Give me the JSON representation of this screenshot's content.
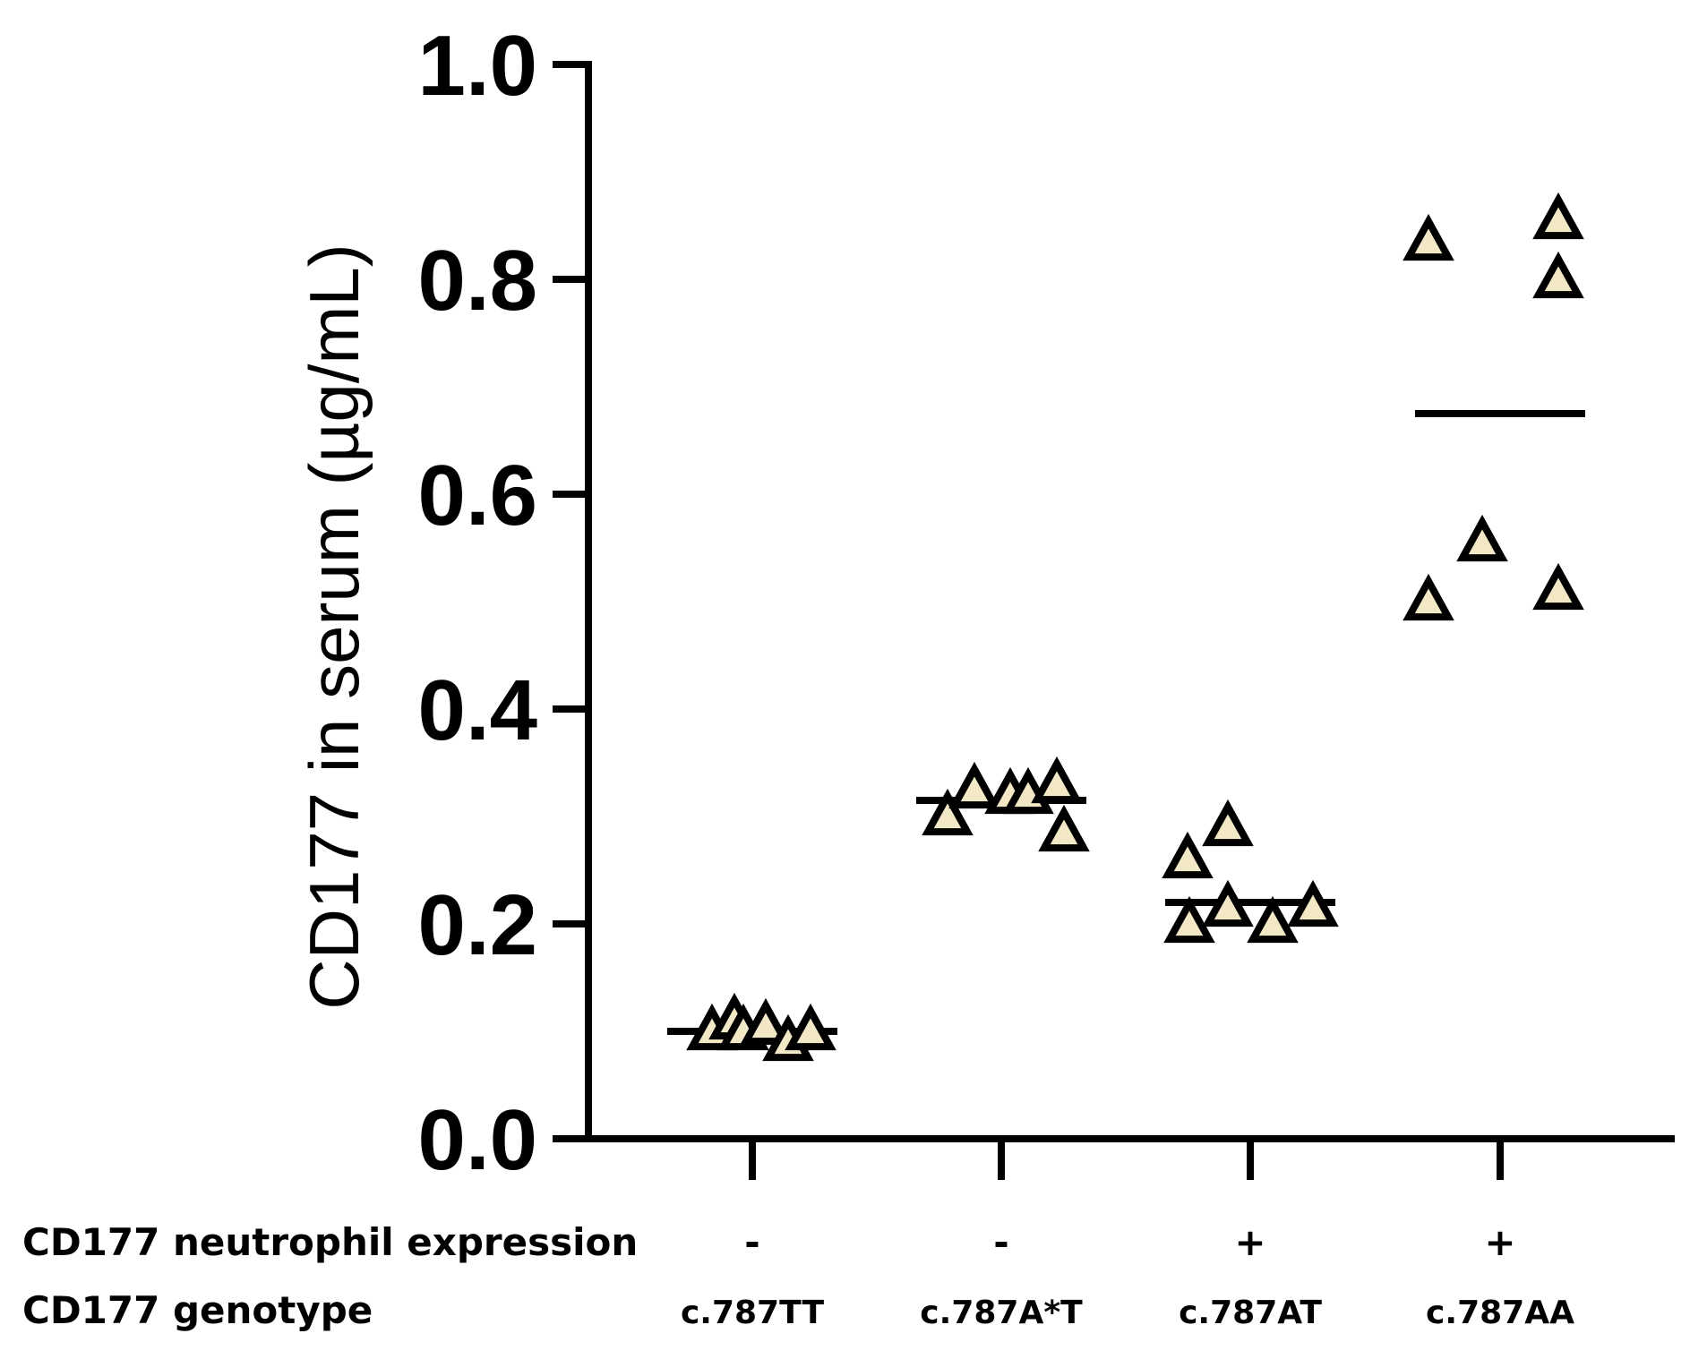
{
  "chart_data": {
    "type": "scatter",
    "ylabel": "CD177 in serum (µg/mL)",
    "ylim": [
      0.0,
      1.0
    ],
    "yticks": [
      "0.0",
      "0.2",
      "0.4",
      "0.6",
      "0.8",
      "1.0"
    ],
    "marker": "triangle",
    "colors": {
      "marker_fill": "#f3e8c6",
      "marker_stroke": "#000000"
    },
    "row_titles": {
      "expression": "CD177 neutrophil expression",
      "genotype": "CD177 genotype"
    },
    "groups": [
      {
        "genotype": "c.787TT",
        "expression": "-",
        "mean": 0.1,
        "values": [
          0.1,
          0.11,
          0.1,
          0.105,
          0.09,
          0.1
        ]
      },
      {
        "genotype": "c.787A*T",
        "expression": "-",
        "mean": 0.315,
        "values": [
          0.3,
          0.325,
          0.32,
          0.32,
          0.33,
          0.285
        ]
      },
      {
        "genotype": "c.787AT",
        "expression": "+",
        "mean": 0.22,
        "values": [
          0.26,
          0.29,
          0.2,
          0.215,
          0.2,
          0.215
        ]
      },
      {
        "genotype": "c.787AA",
        "expression": "+",
        "mean": 0.675,
        "values": [
          0.835,
          0.855,
          0.8,
          0.5,
          0.555,
          0.51
        ]
      }
    ]
  }
}
